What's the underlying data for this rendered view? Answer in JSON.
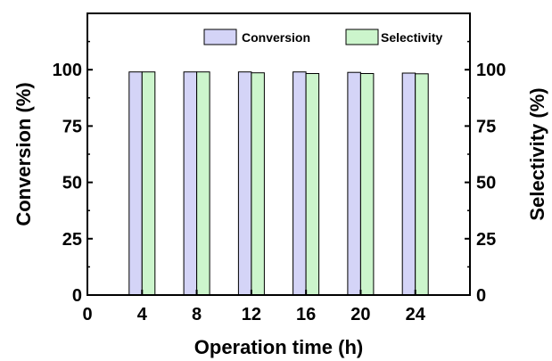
{
  "chart_data": {
    "type": "bar",
    "title": "",
    "xlabel": "Operation time (h)",
    "ylabel": "Conversion (%)",
    "y2label": "Selectivity (%)",
    "xlim": [
      0,
      28
    ],
    "ylim": [
      0,
      125
    ],
    "xticks": [
      0,
      4,
      8,
      12,
      16,
      20,
      24
    ],
    "yticks": [
      0,
      25,
      50,
      75,
      100
    ],
    "x": [
      4,
      8,
      12,
      16,
      20,
      24
    ],
    "series": [
      {
        "name": "Conversion",
        "color": "#d4d4f7",
        "values": [
          99.0,
          99.0,
          99.0,
          99.0,
          98.8,
          98.5
        ]
      },
      {
        "name": "Selectivity",
        "color": "#ccf5cc",
        "values": [
          99.0,
          99.0,
          98.6,
          98.3,
          98.3,
          98.2
        ]
      }
    ],
    "legend_position": "top-right",
    "grid": false
  }
}
